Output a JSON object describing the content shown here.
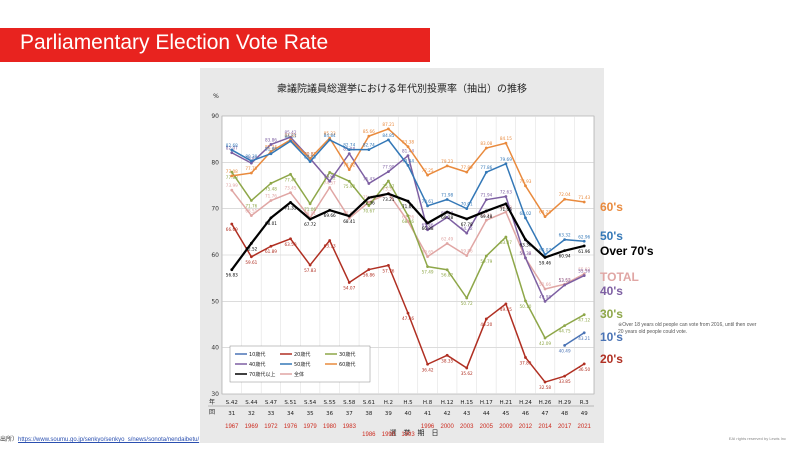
{
  "banner": {
    "title": "Parliamentary Election Vote Rate"
  },
  "colors": {
    "banner": "#e8231f",
    "s60": "#e98a3d",
    "s50": "#3478b7",
    "s70": "#000000",
    "total": "#e0a6a4",
    "s40": "#7d5fa2",
    "s30": "#8ea749",
    "s10": "#4a73b5",
    "s20": "#b02f22"
  },
  "side_labels": [
    {
      "text": "60's",
      "color": "#e98a3d"
    },
    {
      "text": "50's",
      "color": "#3478b7"
    },
    {
      "text": "Over 70's",
      "color": "#000000"
    },
    {
      "text": "TOTAL",
      "color": "#e0a6a4"
    },
    {
      "text": "40's",
      "color": "#7d5fa2"
    },
    {
      "text": "30's",
      "color": "#8ea749"
    },
    {
      "text": "10's",
      "color": "#4a73b5"
    },
    {
      "text": "20's",
      "color": "#b02f22"
    }
  ],
  "note": "※Over 18 years old people can vote from 2016, until then over 20 years old people could vote.",
  "source": {
    "prefix": "出所）",
    "url": "https://www.soumu.go.jp/senkyo/senkyo_s/news/sonota/nendaibetu/"
  },
  "rights": "EAI rights reserved by Lewis Inc",
  "chart_data": {
    "type": "line",
    "title": "衆議院議員総選挙における年代別投票率（抽出）の推移",
    "ylabel": "%",
    "ylim": [
      30,
      90
    ],
    "yticks": [
      30,
      40,
      50,
      60,
      70,
      80,
      90
    ],
    "grid": true,
    "x_axis_title": "選　挙　期　日",
    "x_row_labels": [
      "年",
      "回"
    ],
    "categories": [
      "S.42",
      "S.44",
      "S.47",
      "S.51",
      "S.54",
      "S.55",
      "S.58",
      "S.61",
      "H.2",
      "H.5",
      "H.8",
      "H.12",
      "H.15",
      "H.17",
      "H.21",
      "H.24",
      "H.26",
      "H.29",
      "R.3"
    ],
    "rounds": [
      "31",
      "32",
      "33",
      "34",
      "35",
      "36",
      "37",
      "38",
      "39",
      "40",
      "41",
      "42",
      "43",
      "44",
      "45",
      "46",
      "47",
      "48",
      "49"
    ],
    "years": [
      "1967",
      "1969",
      "1972",
      "1976",
      "1979",
      "1980",
      "1983",
      "1986",
      "1990",
      "1993",
      "1996",
      "2000",
      "2003",
      "2005",
      "2009",
      "2012",
      "2014",
      "2017",
      "2021"
    ],
    "legend": {
      "placement": "bottom-left",
      "entries": [
        "10歳代",
        "20歳代",
        "30歳代",
        "40歳代",
        "50歳代",
        "60歳代",
        "70歳代以上",
        "全体"
      ]
    },
    "series": [
      {
        "name": "60歳代",
        "key": "s60",
        "values": [
          77.08,
          77.7,
          82.34,
          84.84,
          80.82,
          85.23,
          78.42,
          85.66,
          87.21,
          83.38,
          77.25,
          79.23,
          77.89,
          83.08,
          84.15,
          74.93,
          68.28,
          72.04,
          71.43
        ]
      },
      {
        "name": "50歳代",
        "key": "s50",
        "values": [
          82.68,
          80.3,
          81.86,
          84.57,
          80.15,
          84.84,
          82.74,
          82.74,
          84.85,
          79.34,
          70.61,
          71.98,
          70.01,
          77.86,
          79.69,
          68.02,
          60.07,
          63.32,
          62.96
        ]
      },
      {
        "name": "40歳代",
        "key": "s40",
        "values": [
          82.07,
          79.83,
          83.86,
          85.42,
          80.82,
          75.92,
          81.88,
          75.43,
          77.99,
          81.44,
          65.46,
          68.13,
          64.72,
          71.94,
          72.63,
          59.38,
          49.98,
          53.52,
          55.56
        ]
      },
      {
        "name": "30歳代",
        "key": "s30",
        "values": [
          77.88,
          71.76,
          75.48,
          77.41,
          71.06,
          77.82,
          75.92,
          70.67,
          75.97,
          68.46,
          57.49,
          56.82,
          50.72,
          59.79,
          63.87,
          50.1,
          42.09,
          44.75,
          47.12
        ]
      },
      {
        "name": "20歳代",
        "key": "s20",
        "values": [
          66.69,
          59.61,
          61.89,
          63.5,
          57.83,
          63.13,
          54.07,
          56.86,
          57.76,
          47.46,
          36.42,
          38.35,
          35.62,
          46.2,
          49.45,
          37.89,
          32.58,
          33.85,
          36.5
        ]
      },
      {
        "name": "10歳代",
        "key": "s10",
        "values": [
          null,
          null,
          null,
          null,
          null,
          null,
          null,
          null,
          null,
          null,
          null,
          null,
          null,
          null,
          null,
          null,
          null,
          40.49,
          43.21
        ]
      },
      {
        "name": "70歳代以上",
        "key": "s70",
        "values": [
          56.83,
          62.52,
          68.01,
          71.35,
          67.72,
          69.66,
          68.41,
          72.36,
          73.21,
          71.61,
          66.88,
          69.28,
          67.78,
          69.48,
          71.06,
          63.3,
          59.46,
          60.94,
          61.96
        ]
      },
      {
        "name": "全体",
        "key": "total",
        "values": [
          73.99,
          68.51,
          71.76,
          73.45,
          68.01,
          74.57,
          67.94,
          71.4,
          73.31,
          67.26,
          59.65,
          62.49,
          59.86,
          67.51,
          69.28,
          59.32,
          52.66,
          53.68,
          55.93
        ]
      }
    ]
  }
}
